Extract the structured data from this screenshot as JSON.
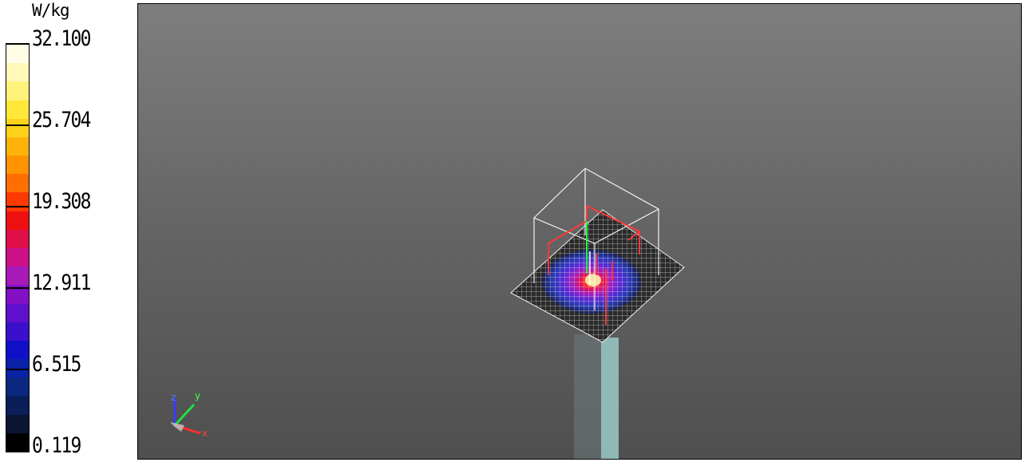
{
  "colorbar": {
    "unit": "W/kg",
    "ticks": [
      "32.100",
      "25.704",
      "19.308",
      "12.911",
      "6.515",
      "0.119"
    ],
    "segments": [
      "#fffde6",
      "#fff8b8",
      "#fff27a",
      "#ffe83a",
      "#ffd21a",
      "#ffb30a",
      "#ff9300",
      "#ff6f00",
      "#ff3a00",
      "#ee1010",
      "#e0104a",
      "#cc1088",
      "#a81ab8",
      "#8310c4",
      "#5e10cc",
      "#3a10cc",
      "#1010c8",
      "#0a22a8",
      "#0a2880",
      "#0a1e58",
      "#0a1433",
      "#000000"
    ]
  },
  "viewport": {
    "background_top": "#7e7e7e",
    "background_bottom": "#4f4f4f",
    "axes": {
      "z": "z",
      "y": "y",
      "x": "x"
    }
  }
}
